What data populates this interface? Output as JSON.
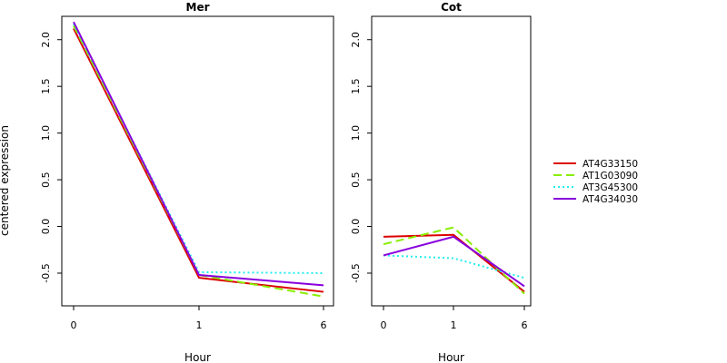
{
  "chart_data": {
    "type": "line",
    "ylabel": "centered expression",
    "ylim": [
      -0.85,
      2.25
    ],
    "yticks": [
      -0.5,
      0.0,
      0.5,
      1.0,
      1.5,
      2.0
    ],
    "ytick_labels": [
      "-0.5",
      "0.0",
      "0.5",
      "1.0",
      "1.5",
      "2.0"
    ],
    "legend_position": "right",
    "legend": [
      {
        "name": "AT4G33150",
        "color": "#dd0000",
        "dash": "solid"
      },
      {
        "name": "AT1G03090",
        "color": "#88ee00",
        "dash": "dashed"
      },
      {
        "name": "AT3G45300",
        "color": "#22eeee",
        "dash": "dotted"
      },
      {
        "name": "AT4G34030",
        "color": "#8800dd",
        "dash": "solid"
      }
    ],
    "panels": [
      {
        "title": "Mer",
        "xlabel": "Hour",
        "x": [
          "0",
          "1",
          "6"
        ],
        "series": [
          {
            "name": "AT4G33150",
            "values": [
              2.12,
              -0.55,
              -0.7
            ]
          },
          {
            "name": "AT1G03090",
            "values": [
              2.15,
              -0.52,
              -0.75
            ]
          },
          {
            "name": "AT3G45300",
            "values": [
              2.17,
              -0.49,
              -0.5
            ]
          },
          {
            "name": "AT4G34030",
            "values": [
              2.19,
              -0.52,
              -0.63
            ]
          }
        ]
      },
      {
        "title": "Cot",
        "xlabel": "Hour",
        "x": [
          "0",
          "1",
          "6"
        ],
        "series": [
          {
            "name": "AT4G33150",
            "values": [
              -0.11,
              -0.09,
              -0.7
            ]
          },
          {
            "name": "AT1G03090",
            "values": [
              -0.19,
              -0.01,
              -0.72
            ]
          },
          {
            "name": "AT3G45300",
            "values": [
              -0.31,
              -0.34,
              -0.55
            ]
          },
          {
            "name": "AT4G34030",
            "values": [
              -0.31,
              -0.11,
              -0.64
            ]
          }
        ]
      }
    ]
  }
}
